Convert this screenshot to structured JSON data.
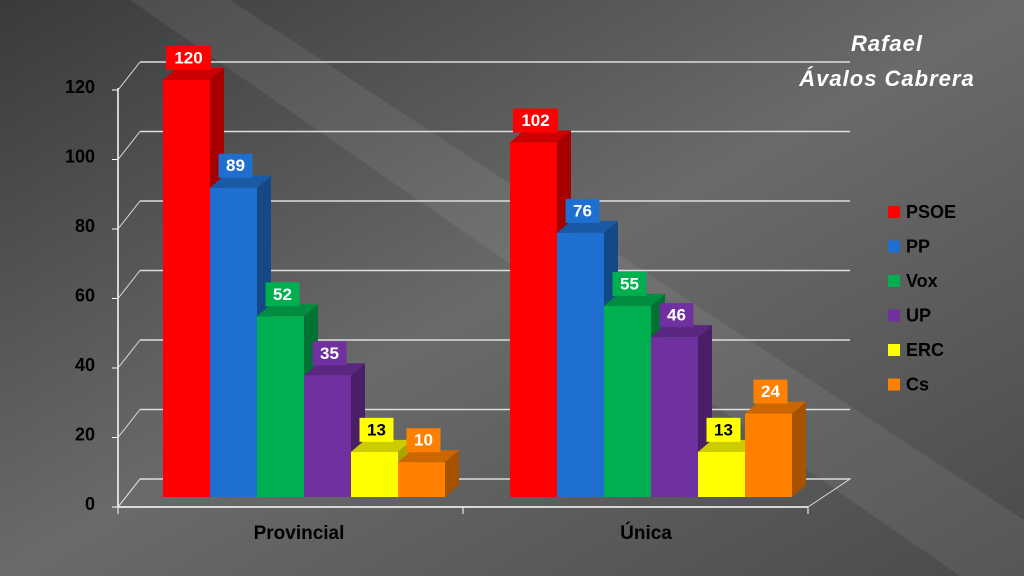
{
  "chart_data": {
    "type": "bar3d",
    "author": [
      "Rafael",
      "Ávalos Cabrera"
    ],
    "categories": [
      "Provincial",
      "Única"
    ],
    "series": [
      {
        "name": "PSOE",
        "color": "#ff0000",
        "values": [
          120,
          102
        ]
      },
      {
        "name": "PP",
        "color": "#1f6fd0",
        "values": [
          89,
          76
        ]
      },
      {
        "name": "Vox",
        "color": "#00b050",
        "values": [
          52,
          55
        ]
      },
      {
        "name": "UP",
        "color": "#7030a0",
        "values": [
          35,
          46
        ]
      },
      {
        "name": "ERC",
        "color": "#ffff00",
        "values": [
          13,
          13
        ]
      },
      {
        "name": "Cs",
        "color": "#ff8000",
        "values": [
          10,
          24
        ]
      }
    ],
    "ylim": [
      0,
      120
    ],
    "yticks": [
      0,
      20,
      40,
      60,
      80,
      100,
      120
    ],
    "grid": true,
    "legend": "right"
  }
}
